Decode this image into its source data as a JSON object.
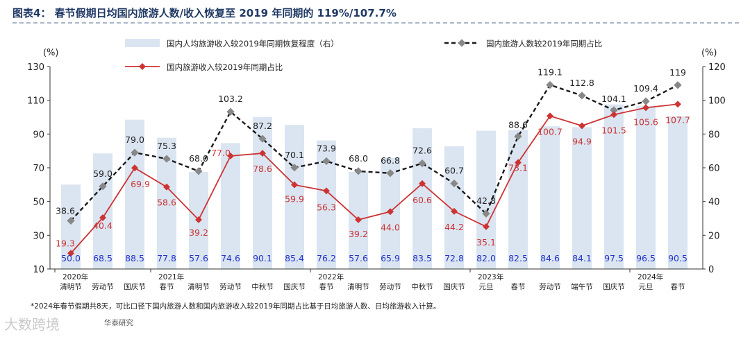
{
  "header": {
    "title": "图表4： 春节假期日均国内旅游人数/收入恢复至 2019 年同期的 119%/107.7%"
  },
  "footnote": "*2024年春节假期共8天，可比口径下国内旅游人数和国内旅游收入较2019年同期占比基于日均旅游人数、日均旅游收入计算。",
  "source": "华泰研究",
  "watermark": "大数跨境",
  "colors": {
    "bar": "#dbe5f1",
    "people_line": "#1a1a1a",
    "income_line": "#cc3333",
    "bar_label": "#2233cc",
    "people_label": "#222222",
    "income_label": "#cc3333",
    "title": "#1f3864"
  },
  "chart_data": {
    "type": "bar",
    "categories": [
      "清明节",
      "劳动节",
      "国庆节",
      "春节",
      "清明节",
      "劳动节",
      "中秋节",
      "国庆节",
      "春节",
      "清明节",
      "劳动节",
      "中秋节",
      "国庆节",
      "元旦",
      "春节",
      "劳动节",
      "端午节",
      "国庆节",
      "元旦",
      "春节"
    ],
    "year_labels": [
      {
        "index": 0,
        "label": "2020年"
      },
      {
        "index": 3,
        "label": "2021年"
      },
      {
        "index": 8,
        "label": "2022年"
      },
      {
        "index": 13,
        "label": "2023年"
      },
      {
        "index": 18,
        "label": "2024年"
      }
    ],
    "left_axis": {
      "unit": "(%)",
      "ylim": [
        10,
        130
      ],
      "ticks": [
        10,
        30,
        50,
        70,
        90,
        110,
        130
      ]
    },
    "right_axis": {
      "unit": "(%)",
      "ylim": [
        0,
        120
      ],
      "ticks": [
        0,
        20,
        40,
        60,
        80,
        100,
        120
      ]
    },
    "series": [
      {
        "name": "国内人均旅游收入较2019年同期恢复程度（右）",
        "kind": "bar",
        "axis": "right",
        "values": [
          50.0,
          68.5,
          88.5,
          77.8,
          57.6,
          74.6,
          90.1,
          85.4,
          76.2,
          57.6,
          65.9,
          83.5,
          72.8,
          82.0,
          82.5,
          84.6,
          84.1,
          97.5,
          96.5,
          90.5
        ]
      },
      {
        "name": "国内旅游人数较2019年同期占比",
        "kind": "line-dashed",
        "axis": "left",
        "values": [
          38.6,
          59.0,
          79.0,
          75.3,
          68.0,
          103.2,
          87.2,
          70.1,
          73.9,
          68.0,
          66.8,
          72.6,
          60.7,
          42.8,
          88.6,
          119.1,
          112.8,
          104.1,
          109.4,
          119
        ]
      },
      {
        "name": "国内旅游收入较2019年同期占比",
        "kind": "line",
        "axis": "left",
        "values": [
          19.3,
          40.4,
          69.9,
          58.6,
          39.2,
          77.0,
          78.6,
          59.9,
          56.3,
          39.2,
          44.0,
          60.6,
          44.2,
          35.1,
          73.1,
          100.7,
          94.9,
          101.5,
          105.6,
          107.7
        ]
      }
    ],
    "grid": false,
    "legend": "top"
  }
}
